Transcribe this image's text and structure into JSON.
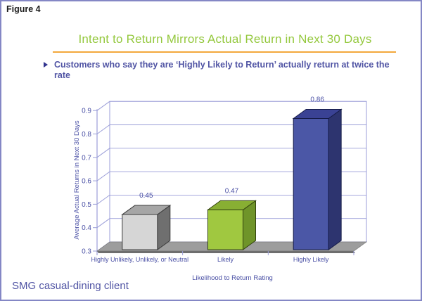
{
  "figure_label": "Figure 4",
  "slide": {
    "title": "Intent to Return Mirrors Actual Return in Next 30 Days",
    "bullet": "Customers who say they are ‘Highly Likely to Return’ actually return at twice the rate",
    "footer": "SMG casual-dining client"
  },
  "colors": {
    "page_bg": "#ffffff",
    "panel_border": "#8487c5",
    "figure_ink": "#1c1c1c",
    "title_green": "#94c83d",
    "rule_orange": "#f3a83c",
    "text_blue": "#5054a4",
    "bullet_blue": "#31348e"
  },
  "chart_data": {
    "type": "bar",
    "projection": "3d",
    "title": "Intent to Return Mirrors Actual Return in Next 30 Days",
    "categories": [
      "Highly Unlikely, Unlikely, or Neutral",
      "Likely",
      "Highly Likely"
    ],
    "values": [
      0.45,
      0.47,
      0.86
    ],
    "data_labels": [
      "0.45",
      "0.47",
      "0.86"
    ],
    "xlabel": "Likelihood to Return Rating",
    "ylabel": "Average Actual Returns in Next 30 Days",
    "ylim": [
      0.3,
      0.9
    ],
    "ytick_step": 0.1,
    "yticks": [
      "0.3",
      "0.4",
      "0.5",
      "0.6",
      "0.7",
      "0.8",
      "0.9"
    ],
    "grid": true,
    "legend": "none",
    "text_color": "#4a50a5",
    "grid_color": "#9b9ed8",
    "wall_color": "#ffffff",
    "floor_color": "#9d9d9d",
    "floor_edge_color": "#6e6e6e",
    "bar_colors": [
      {
        "name": "silver",
        "front": "#d6d6d6",
        "top": "#a6a6a6",
        "side": "#6f6f6f",
        "outline": "#3c3c3c"
      },
      {
        "name": "green",
        "front": "#a0c840",
        "top": "#88af33",
        "side": "#6f9429",
        "outline": "#33430f"
      },
      {
        "name": "blue",
        "front": "#4b57a6",
        "top": "#3a4294",
        "side": "#2d346f",
        "outline": "#161c49"
      }
    ]
  }
}
